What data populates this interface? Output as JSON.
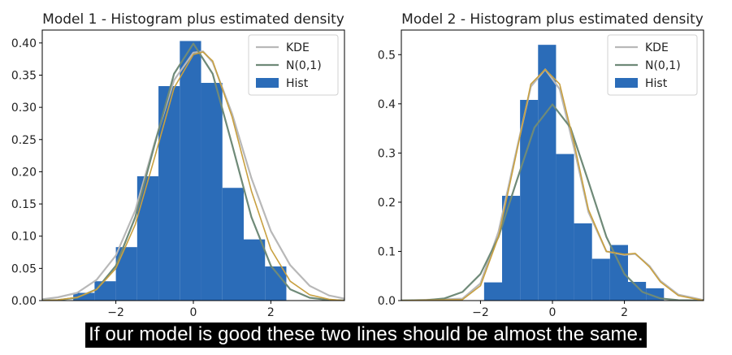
{
  "caption": "If our model is good these two lines should be almost the same.",
  "colors": {
    "hist": "#2b6cb8",
    "kde": "#b8b8b8",
    "normal": "#6f8a78",
    "extra_curve": "#c8a040",
    "axes": "#000000"
  },
  "chart_data": [
    {
      "type": "bar",
      "title": "Model 1 - Histogram plus estimated density",
      "xlim": [
        -3.9,
        3.9
      ],
      "ylim": [
        0,
        0.42
      ],
      "xticks": [
        -2,
        0,
        2
      ],
      "xtick_labels": [
        "−2",
        "0",
        "2"
      ],
      "yticks": [
        0.0,
        0.05,
        0.1,
        0.15,
        0.2,
        0.25,
        0.3,
        0.35,
        0.4
      ],
      "ytick_labels": [
        "0.00",
        "0.05",
        "0.10",
        "0.15",
        "0.20",
        "0.25",
        "0.30",
        "0.35",
        "0.40"
      ],
      "legend": {
        "position": "top-right",
        "entries": [
          {
            "label": "KDE",
            "kind": "line",
            "color": "#b8b8b8"
          },
          {
            "label": "N(0,1)",
            "kind": "line",
            "color": "#6f8a78"
          },
          {
            "label": "Hist",
            "kind": "patch",
            "color": "#2b6cb8"
          }
        ]
      },
      "hist": {
        "edges": [
          -3.1,
          -2.55,
          -2.0,
          -1.45,
          -0.9,
          -0.35,
          0.2,
          0.75,
          1.3,
          1.85,
          2.4,
          2.95
        ],
        "heights": [
          0.012,
          0.03,
          0.083,
          0.193,
          0.333,
          0.403,
          0.338,
          0.175,
          0.095,
          0.053,
          0.0
        ]
      },
      "curves": [
        {
          "name": "KDE",
          "color": "#b8b8b8",
          "points": [
            [
              -3.9,
              0.002
            ],
            [
              -3.5,
              0.005
            ],
            [
              -3.0,
              0.012
            ],
            [
              -2.5,
              0.032
            ],
            [
              -2.0,
              0.07
            ],
            [
              -1.5,
              0.14
            ],
            [
              -1.0,
              0.245
            ],
            [
              -0.5,
              0.342
            ],
            [
              0.0,
              0.385
            ],
            [
              0.25,
              0.387
            ],
            [
              0.5,
              0.37
            ],
            [
              1.0,
              0.29
            ],
            [
              1.5,
              0.19
            ],
            [
              2.0,
              0.108
            ],
            [
              2.5,
              0.055
            ],
            [
              3.0,
              0.023
            ],
            [
              3.5,
              0.008
            ],
            [
              3.9,
              0.003
            ]
          ]
        },
        {
          "name": "N(0,1)",
          "color": "#6f8a78",
          "points": [
            [
              -3.9,
              0.0002
            ],
            [
              -3.5,
              0.0009
            ],
            [
              -3.0,
              0.0044
            ],
            [
              -2.5,
              0.0175
            ],
            [
              -2.0,
              0.054
            ],
            [
              -1.5,
              0.1295
            ],
            [
              -1.0,
              0.242
            ],
            [
              -0.5,
              0.352
            ],
            [
              0.0,
              0.3989
            ],
            [
              0.5,
              0.352
            ],
            [
              1.0,
              0.242
            ],
            [
              1.5,
              0.1295
            ],
            [
              2.0,
              0.054
            ],
            [
              2.5,
              0.0175
            ],
            [
              3.0,
              0.0044
            ],
            [
              3.5,
              0.0009
            ],
            [
              3.9,
              0.0002
            ]
          ]
        },
        {
          "name": "",
          "color": "#c8a040",
          "points": [
            [
              -3.9,
              0.0
            ],
            [
              -3.5,
              0.001
            ],
            [
              -3.0,
              0.005
            ],
            [
              -2.5,
              0.017
            ],
            [
              -2.0,
              0.05
            ],
            [
              -1.5,
              0.118
            ],
            [
              -1.0,
              0.222
            ],
            [
              -0.5,
              0.33
            ],
            [
              0.0,
              0.382
            ],
            [
              0.25,
              0.386
            ],
            [
              0.5,
              0.372
            ],
            [
              1.0,
              0.285
            ],
            [
              1.5,
              0.17
            ],
            [
              2.0,
              0.08
            ],
            [
              2.5,
              0.03
            ],
            [
              3.0,
              0.009
            ],
            [
              3.5,
              0.002
            ],
            [
              3.9,
              0.0
            ]
          ]
        }
      ]
    },
    {
      "type": "bar",
      "title": "Model 2 - Histogram plus estimated density",
      "xlim": [
        -4.2,
        4.2
      ],
      "ylim": [
        0,
        0.55
      ],
      "xticks": [
        -2,
        0,
        2
      ],
      "xtick_labels": [
        "−2",
        "0",
        "2"
      ],
      "yticks": [
        0.0,
        0.1,
        0.2,
        0.3,
        0.4,
        0.5
      ],
      "ytick_labels": [
        "0.0",
        "0.1",
        "0.2",
        "0.3",
        "0.4",
        "0.5"
      ],
      "legend": {
        "position": "top-right",
        "entries": [
          {
            "label": "KDE",
            "kind": "line",
            "color": "#b8b8b8"
          },
          {
            "label": "N(0,1)",
            "kind": "line",
            "color": "#6f8a78"
          },
          {
            "label": "Hist",
            "kind": "patch",
            "color": "#2b6cb8"
          }
        ]
      },
      "hist": {
        "edges": [
          -1.9,
          -1.4,
          -0.9,
          -0.4,
          0.1,
          0.6,
          1.1,
          1.6,
          2.1,
          2.6,
          3.1,
          3.6
        ],
        "heights": [
          0.037,
          0.213,
          0.408,
          0.52,
          0.298,
          0.157,
          0.085,
          0.113,
          0.038,
          0.025,
          0.0
        ]
      },
      "curves": [
        {
          "name": "KDE",
          "color": "#b8b8b8",
          "points": [
            [
              -4.2,
              0.0
            ],
            [
              -2.5,
              0.004
            ],
            [
              -2.0,
              0.035
            ],
            [
              -1.5,
              0.14
            ],
            [
              -1.0,
              0.305
            ],
            [
              -0.6,
              0.435
            ],
            [
              -0.2,
              0.47
            ],
            [
              0.2,
              0.43
            ],
            [
              0.6,
              0.31
            ],
            [
              1.0,
              0.18
            ],
            [
              1.5,
              0.1
            ],
            [
              2.0,
              0.093
            ],
            [
              2.3,
              0.095
            ],
            [
              2.7,
              0.07
            ],
            [
              3.0,
              0.04
            ],
            [
              3.5,
              0.012
            ],
            [
              4.2,
              0.001
            ]
          ]
        },
        {
          "name": "N(0,1)",
          "color": "#6f8a78",
          "points": [
            [
              -4.2,
              0.0001
            ],
            [
              -3.5,
              0.0009
            ],
            [
              -3.0,
              0.0044
            ],
            [
              -2.5,
              0.0175
            ],
            [
              -2.0,
              0.054
            ],
            [
              -1.5,
              0.1295
            ],
            [
              -1.0,
              0.242
            ],
            [
              -0.5,
              0.352
            ],
            [
              0.0,
              0.3989
            ],
            [
              0.5,
              0.352
            ],
            [
              1.0,
              0.242
            ],
            [
              1.5,
              0.1295
            ],
            [
              2.0,
              0.054
            ],
            [
              2.5,
              0.0175
            ],
            [
              3.0,
              0.0044
            ],
            [
              3.5,
              0.0009
            ],
            [
              4.2,
              0.0001
            ]
          ]
        },
        {
          "name": "",
          "color": "#c8a040",
          "points": [
            [
              -4.2,
              0.0
            ],
            [
              -2.5,
              0.002
            ],
            [
              -2.0,
              0.03
            ],
            [
              -1.5,
              0.13
            ],
            [
              -1.0,
              0.3
            ],
            [
              -0.6,
              0.44
            ],
            [
              -0.2,
              0.47
            ],
            [
              0.2,
              0.44
            ],
            [
              0.6,
              0.32
            ],
            [
              1.0,
              0.185
            ],
            [
              1.5,
              0.1
            ],
            [
              2.0,
              0.094
            ],
            [
              2.3,
              0.096
            ],
            [
              2.7,
              0.068
            ],
            [
              3.0,
              0.038
            ],
            [
              3.5,
              0.01
            ],
            [
              4.2,
              0.0
            ]
          ]
        }
      ]
    }
  ]
}
